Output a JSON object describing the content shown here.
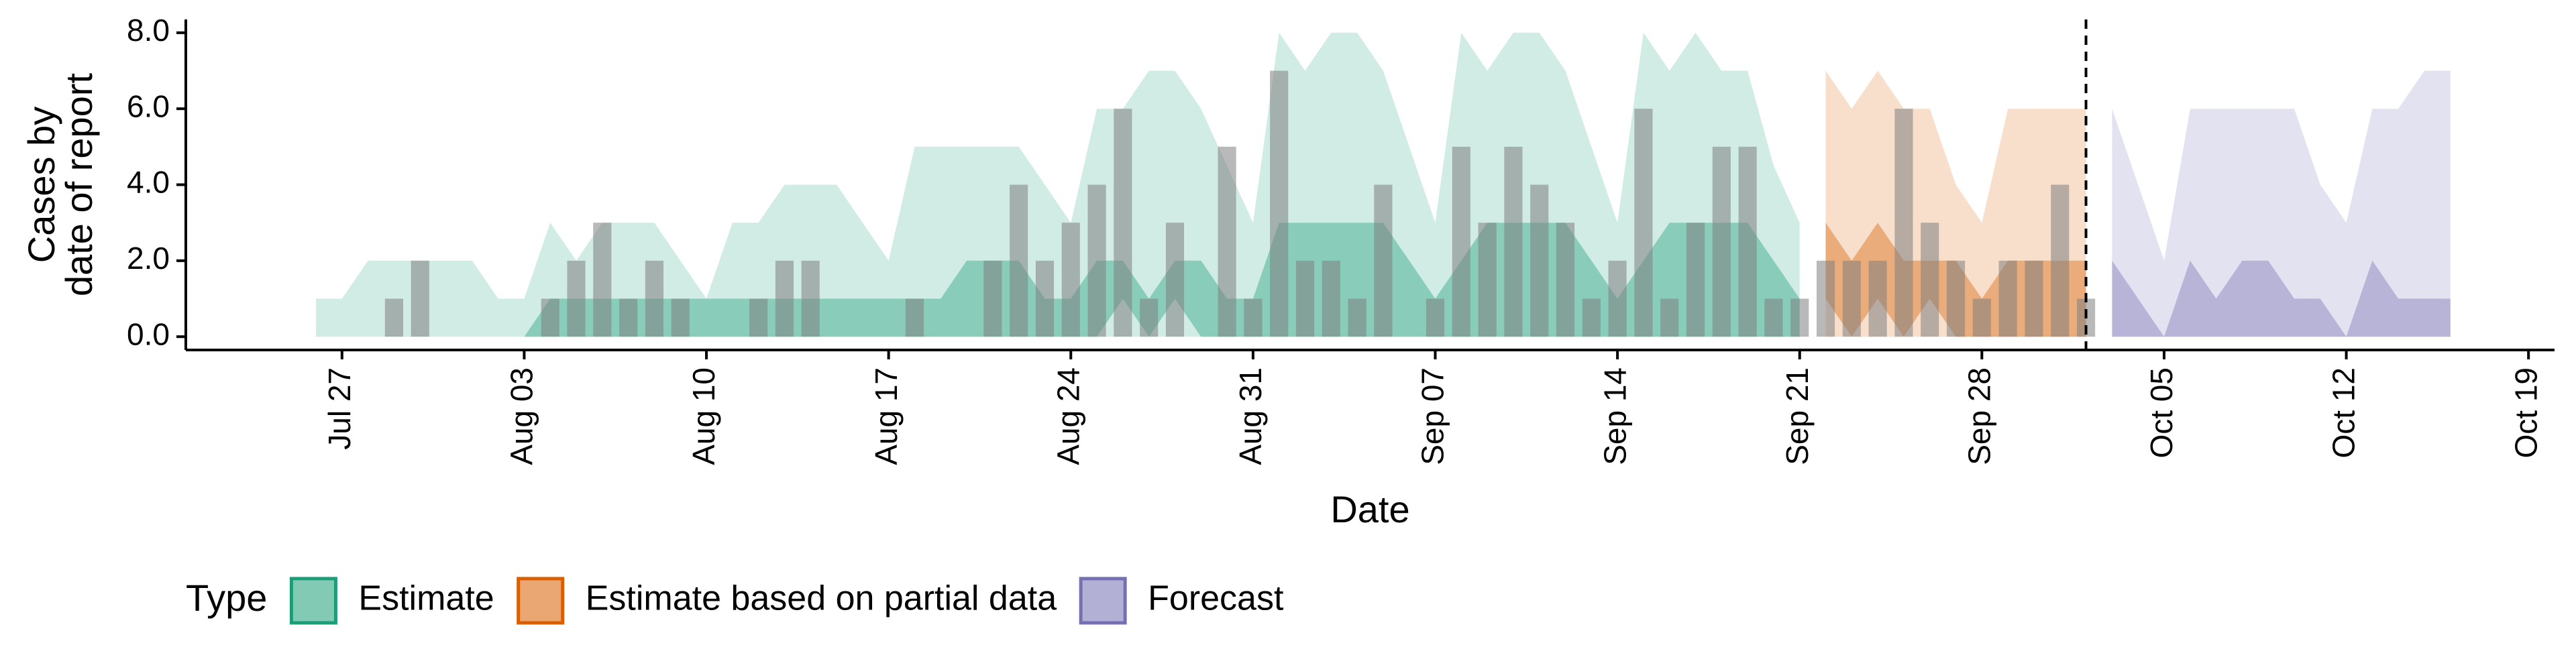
{
  "chart_data": {
    "type": "ribbon",
    "xlabel": "Date",
    "ylabel": [
      "Cases by",
      "date of report"
    ],
    "legend_title": "Type",
    "xlim": [
      "Jul 21",
      "Oct 20"
    ],
    "xticks": [
      "Jul 27",
      "Aug 03",
      "Aug 10",
      "Aug 17",
      "Aug 24",
      "Aug 31",
      "Sep 07",
      "Sep 14",
      "Sep 21",
      "Sep 28",
      "Oct 05",
      "Oct 12",
      "Oct 19"
    ],
    "ylim": [
      -0.35,
      8.35
    ],
    "yticks": [
      {
        "value": 0,
        "label": "0.0"
      },
      {
        "value": 2,
        "label": "2.0"
      },
      {
        "value": 4,
        "label": "4.0"
      },
      {
        "value": 6,
        "label": "6.0"
      },
      {
        "value": 8,
        "label": "8.0"
      }
    ],
    "vline": "Oct 02",
    "bar_color": "#808080",
    "x": [
      "Jul 26",
      "Jul 27",
      "Jul 28",
      "Jul 29",
      "Jul 30",
      "Jul 31",
      "Aug 01",
      "Aug 02",
      "Aug 03",
      "Aug 04",
      "Aug 05",
      "Aug 06",
      "Aug 07",
      "Aug 08",
      "Aug 09",
      "Aug 10",
      "Aug 11",
      "Aug 12",
      "Aug 13",
      "Aug 14",
      "Aug 15",
      "Aug 16",
      "Aug 17",
      "Aug 18",
      "Aug 19",
      "Aug 20",
      "Aug 21",
      "Aug 22",
      "Aug 23",
      "Aug 24",
      "Aug 25",
      "Aug 26",
      "Aug 27",
      "Aug 28",
      "Aug 29",
      "Aug 30",
      "Aug 31",
      "Sep 01",
      "Sep 02",
      "Sep 03",
      "Sep 04",
      "Sep 05",
      "Sep 06",
      "Sep 07",
      "Sep 08",
      "Sep 09",
      "Sep 10",
      "Sep 11",
      "Sep 12",
      "Sep 13",
      "Sep 14",
      "Sep 15",
      "Sep 16",
      "Sep 17",
      "Sep 18",
      "Sep 19",
      "Sep 20",
      "Sep 21",
      "Sep 22",
      "Sep 23",
      "Sep 24",
      "Sep 25",
      "Sep 26",
      "Sep 27",
      "Sep 28",
      "Sep 29",
      "Sep 30",
      "Oct 01",
      "Oct 02"
    ],
    "values": [
      0,
      0,
      0,
      1,
      2,
      0,
      0,
      0,
      0,
      1,
      2,
      3,
      1,
      2,
      1,
      0,
      0,
      1,
      2,
      2,
      0,
      0,
      0,
      1,
      0,
      0,
      2,
      4,
      2,
      3,
      4,
      6,
      1,
      3,
      0,
      5,
      1,
      7,
      2,
      2,
      1,
      4,
      0,
      1,
      5,
      3,
      5,
      4,
      3,
      1,
      2,
      6,
      1,
      3,
      5,
      5,
      1,
      1,
      2,
      2,
      2,
      6,
      3,
      2,
      1,
      2,
      2,
      4,
      1
    ],
    "series": [
      {
        "name": "Estimate",
        "color": "#1b9e77",
        "x": [
          "Jul 26",
          "Jul 27",
          "Jul 28",
          "Jul 29",
          "Jul 30",
          "Jul 31",
          "Aug 01",
          "Aug 02",
          "Aug 03",
          "Aug 04",
          "Aug 05",
          "Aug 06",
          "Aug 07",
          "Aug 08",
          "Aug 09",
          "Aug 10",
          "Aug 11",
          "Aug 12",
          "Aug 13",
          "Aug 14",
          "Aug 15",
          "Aug 16",
          "Aug 17",
          "Aug 18",
          "Aug 19",
          "Aug 20",
          "Aug 21",
          "Aug 22",
          "Aug 23",
          "Aug 24",
          "Aug 25",
          "Aug 26",
          "Aug 27",
          "Aug 28",
          "Aug 29",
          "Aug 30",
          "Aug 31",
          "Sep 01",
          "Sep 02",
          "Sep 03",
          "Sep 04",
          "Sep 05",
          "Sep 06",
          "Sep 07",
          "Sep 08",
          "Sep 09",
          "Sep 10",
          "Sep 11",
          "Sep 12",
          "Sep 13",
          "Sep 14",
          "Sep 15",
          "Sep 16",
          "Sep 17",
          "Sep 18",
          "Sep 19",
          "Sep 20",
          "Sep 21"
        ],
        "lower": [
          0,
          0,
          0,
          0,
          0,
          0,
          0,
          0,
          0,
          0,
          0,
          0,
          0,
          0,
          0,
          0,
          0,
          0,
          0,
          0,
          0,
          0,
          0,
          0,
          0,
          0,
          0,
          0,
          0,
          0,
          0,
          0,
          0,
          0,
          0,
          0,
          0,
          0,
          0,
          0,
          0,
          0,
          0,
          0,
          0,
          0,
          0,
          0,
          0,
          0,
          0,
          0,
          0,
          0,
          0,
          0,
          0,
          0
        ],
        "upper": [
          1,
          1,
          2,
          2,
          2,
          2,
          2,
          1,
          1,
          3,
          2,
          3,
          3,
          3,
          2,
          1,
          3,
          3,
          4,
          4,
          4,
          3,
          2,
          5,
          5,
          5,
          5,
          5,
          4,
          3,
          6,
          6,
          7,
          7,
          6,
          4.5,
          3,
          8,
          7,
          8,
          8,
          7,
          5,
          3,
          8,
          7,
          8,
          8,
          7,
          5,
          3,
          8,
          7,
          8,
          7,
          7,
          4.5,
          3
        ],
        "inner_lower": [
          0,
          0,
          0,
          0,
          0,
          0,
          0,
          0,
          0,
          0,
          0,
          0,
          0,
          0,
          0,
          0,
          0,
          0,
          0,
          0,
          0,
          0,
          0,
          0,
          0,
          0,
          0,
          0,
          0,
          0,
          0,
          1,
          0,
          1,
          0,
          0,
          0,
          0,
          0,
          0,
          0,
          0,
          0,
          0,
          0,
          0,
          0,
          0,
          0,
          0,
          0,
          0,
          0,
          0,
          0,
          0,
          0,
          0
        ],
        "inner_upper": [
          0,
          0,
          0,
          0,
          0,
          0,
          0,
          0,
          0,
          1,
          1,
          1,
          1,
          1,
          1,
          1,
          1,
          1,
          1,
          1,
          1,
          1,
          1,
          1,
          1,
          2,
          2,
          2,
          1,
          1,
          2,
          2,
          1,
          2,
          2,
          1,
          1,
          3,
          3,
          3,
          3,
          3,
          2,
          1,
          2,
          3,
          3,
          3,
          3,
          2,
          1,
          2,
          3,
          3,
          3,
          3,
          2,
          1
        ]
      },
      {
        "name": "Estimate based on partial data",
        "color": "#d95f02",
        "x": [
          "Sep 22",
          "Sep 23",
          "Sep 24",
          "Sep 25",
          "Sep 26",
          "Sep 27",
          "Sep 28",
          "Sep 29",
          "Sep 30",
          "Oct 01",
          "Oct 02"
        ],
        "lower": [
          0,
          0,
          0,
          0,
          0,
          0,
          0,
          0,
          0,
          0,
          0
        ],
        "upper": [
          7,
          6,
          7,
          6,
          6,
          4,
          3,
          6,
          6,
          6,
          6
        ],
        "inner_lower": [
          1,
          0,
          1,
          0,
          1,
          0,
          0,
          0,
          0,
          0,
          0
        ],
        "inner_upper": [
          3,
          2,
          3,
          2,
          2,
          2,
          1,
          2,
          2,
          2,
          2
        ]
      },
      {
        "name": "Forecast",
        "color": "#7570b3",
        "x": [
          "Oct 03",
          "Oct 04",
          "Oct 05",
          "Oct 06",
          "Oct 07",
          "Oct 08",
          "Oct 09",
          "Oct 10",
          "Oct 11",
          "Oct 12",
          "Oct 13",
          "Oct 14",
          "Oct 15",
          "Oct 16"
        ],
        "lower": [
          0,
          0,
          0,
          0,
          0,
          0,
          0,
          0,
          0,
          0,
          0,
          0,
          0,
          0
        ],
        "upper": [
          6,
          4,
          2,
          6,
          6,
          6,
          6,
          6,
          4,
          3,
          6,
          6,
          7,
          7
        ],
        "inner_lower": [
          0,
          0,
          0,
          0,
          0,
          0,
          0,
          0,
          0,
          0,
          0,
          0,
          0,
          0
        ],
        "inner_upper": [
          2,
          1,
          0,
          2,
          1,
          2,
          2,
          1,
          1,
          0,
          2,
          1,
          1,
          1
        ]
      }
    ]
  }
}
